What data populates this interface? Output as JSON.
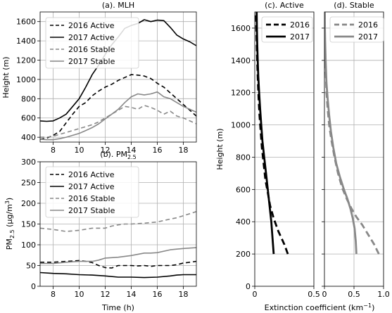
{
  "chart_data": [
    {
      "id": "a",
      "type": "line",
      "title": "(a). MLH",
      "xlabel": "",
      "ylabel": "Height (m)",
      "xlim": [
        7,
        19
      ],
      "ylim": [
        350,
        1700
      ],
      "xticks": [
        8,
        10,
        12,
        14,
        16,
        18
      ],
      "yticks": [
        400,
        600,
        800,
        1000,
        1200,
        1400,
        1600
      ],
      "grid": true,
      "legend": "top-left",
      "series": [
        {
          "name": "2016 Active",
          "color": "#000000",
          "dash": "dashed",
          "x": [
            7,
            7.5,
            8,
            8.5,
            9,
            9.5,
            10,
            10.5,
            11,
            11.5,
            12,
            12.5,
            13,
            13.5,
            14,
            14.5,
            15,
            15.5,
            16,
            16.5,
            17,
            17.5,
            18,
            18.5,
            19
          ],
          "y": [
            380,
            390,
            420,
            460,
            550,
            640,
            720,
            760,
            830,
            880,
            920,
            950,
            990,
            1020,
            1050,
            1045,
            1035,
            1010,
            960,
            920,
            860,
            800,
            740,
            680,
            620
          ]
        },
        {
          "name": "2017 Active",
          "color": "#000000",
          "dash": "solid",
          "x": [
            7,
            7.5,
            8,
            8.5,
            9,
            9.5,
            10,
            10.5,
            11,
            11.5,
            12,
            12.5,
            13,
            13.5,
            14,
            14.5,
            15,
            15.5,
            16,
            16.5,
            17,
            17.5,
            18,
            18.5,
            19
          ],
          "y": [
            570,
            565,
            570,
            600,
            640,
            720,
            800,
            920,
            1050,
            1150,
            1260,
            1360,
            1440,
            1530,
            1560,
            1580,
            1620,
            1600,
            1615,
            1610,
            1540,
            1460,
            1420,
            1390,
            1350
          ]
        },
        {
          "name": "2016 Stable",
          "color": "#888888",
          "dash": "dashed",
          "x": [
            7,
            7.5,
            8,
            8.5,
            9,
            9.5,
            10,
            10.5,
            11,
            11.5,
            12,
            12.5,
            13,
            13.5,
            14,
            14.5,
            15,
            15.5,
            16,
            16.5,
            17,
            17.5,
            18,
            18.5,
            19
          ],
          "y": [
            400,
            400,
            410,
            430,
            450,
            470,
            490,
            510,
            530,
            560,
            600,
            640,
            680,
            720,
            710,
            690,
            730,
            710,
            680,
            640,
            670,
            620,
            600,
            570,
            540
          ]
        },
        {
          "name": "2017 Stable",
          "color": "#888888",
          "dash": "solid",
          "x": [
            7,
            7.5,
            8,
            8.5,
            9,
            9.5,
            10,
            10.5,
            11,
            11.5,
            12,
            12.5,
            13,
            13.5,
            14,
            14.5,
            15,
            15.5,
            16,
            16.5,
            17,
            17.5,
            18,
            18.5,
            19
          ],
          "y": [
            380,
            375,
            375,
            385,
            400,
            420,
            440,
            470,
            500,
            540,
            590,
            640,
            690,
            760,
            820,
            850,
            840,
            850,
            870,
            820,
            800,
            760,
            720,
            690,
            660
          ]
        }
      ]
    },
    {
      "id": "b",
      "type": "line",
      "title": "(b). PM",
      "title_sub": "2.5",
      "xlabel": "Time (h)",
      "ylabel": "PM",
      "ylabel_sub": "2.5",
      "ylabel_unit": " (μg/m",
      "ylabel_sup": "3",
      "ylabel_end": ")",
      "xlim": [
        7,
        19
      ],
      "ylim": [
        0,
        300
      ],
      "xticks": [
        8,
        10,
        12,
        14,
        16,
        18
      ],
      "yticks": [
        0,
        50,
        100,
        150,
        200,
        250,
        300
      ],
      "grid": true,
      "legend": "top-left",
      "series": [
        {
          "name": "2016 Active",
          "color": "#000000",
          "dash": "dashed",
          "x": [
            7,
            8,
            9,
            10,
            10.5,
            11,
            11.5,
            12,
            12.5,
            13,
            13.5,
            14,
            14.5,
            15,
            15.5,
            16,
            17,
            17.5,
            18,
            18.5,
            19
          ],
          "y": [
            58,
            58,
            60,
            62,
            60,
            57,
            50,
            45,
            44,
            50,
            50,
            50,
            49,
            50,
            48,
            50,
            50,
            52,
            56,
            58,
            60
          ]
        },
        {
          "name": "2017 Active",
          "color": "#000000",
          "dash": "solid",
          "x": [
            7,
            8,
            9,
            10,
            11,
            12,
            13,
            14,
            15,
            16,
            17,
            17.5,
            18,
            19
          ],
          "y": [
            33,
            31,
            30,
            28,
            27,
            25,
            22,
            22,
            21,
            22,
            25,
            27,
            28,
            28
          ]
        },
        {
          "name": "2016 Stable",
          "color": "#888888",
          "dash": "dashed",
          "x": [
            7,
            8,
            9,
            10,
            11,
            12,
            12.5,
            13,
            13.5,
            14,
            15,
            16,
            17,
            17.5,
            18,
            18.5,
            19
          ],
          "y": [
            140,
            137,
            132,
            135,
            140,
            140,
            145,
            148,
            150,
            150,
            152,
            155,
            162,
            165,
            170,
            175,
            180
          ]
        },
        {
          "name": "2017 Stable",
          "color": "#888888",
          "dash": "solid",
          "x": [
            7,
            8,
            9,
            10,
            11,
            11.5,
            12,
            13,
            14,
            15,
            15.5,
            16,
            17,
            18,
            19
          ],
          "y": [
            55,
            55,
            58,
            60,
            60,
            63,
            68,
            70,
            74,
            80,
            80,
            81,
            88,
            91,
            93
          ]
        }
      ]
    },
    {
      "id": "c",
      "type": "line",
      "title": "(c). Active",
      "xlabel": "",
      "ylabel": "Height (m)",
      "xlim": [
        0,
        0.5
      ],
      "ylim": [
        0,
        1700
      ],
      "xticks": [
        0,
        0.5
      ],
      "xtick_labels": [
        "0",
        "0.5"
      ],
      "yticks": [
        0,
        200,
        400,
        600,
        800,
        1000,
        1200,
        1400,
        1600
      ],
      "grid": true,
      "legend": "top-right",
      "series": [
        {
          "name": "2016",
          "color": "#000000",
          "dash": "dashed",
          "x": [
            0.28,
            0.25,
            0.2,
            0.16,
            0.13,
            0.11,
            0.09,
            0.075,
            0.06,
            0.05,
            0.04,
            0.033,
            0.027,
            0.022,
            0.018,
            0.015,
            0.012,
            0.01
          ],
          "y": [
            200,
            260,
            340,
            420,
            500,
            580,
            660,
            760,
            860,
            960,
            1060,
            1160,
            1260,
            1360,
            1460,
            1560,
            1640,
            1700
          ]
        },
        {
          "name": "2017",
          "color": "#000000",
          "dash": "solid",
          "x": [
            0.16,
            0.15,
            0.14,
            0.125,
            0.11,
            0.095,
            0.08,
            0.065,
            0.055,
            0.045,
            0.037,
            0.03,
            0.025,
            0.021,
            0.018,
            0.016
          ],
          "y": [
            200,
            300,
            400,
            500,
            600,
            700,
            800,
            900,
            1000,
            1100,
            1200,
            1300,
            1400,
            1500,
            1600,
            1700
          ]
        }
      ]
    },
    {
      "id": "d",
      "type": "line",
      "title": "(d). Stable",
      "xlabel": "",
      "ylabel": "",
      "xlim": [
        0,
        1.0
      ],
      "ylim": [
        0,
        1700
      ],
      "xticks": [
        0,
        0.5,
        1.0
      ],
      "xtick_labels": [
        "0",
        "0.5",
        "1.0"
      ],
      "grid": true,
      "legend": "top-right",
      "series": [
        {
          "name": "2016",
          "color": "#888888",
          "dash": "dashed",
          "x": [
            0.92,
            0.84,
            0.74,
            0.64,
            0.54,
            0.46,
            0.38,
            0.3,
            0.23,
            0.17,
            0.12,
            0.08,
            0.055,
            0.035,
            0.02,
            0.01,
            0.005
          ],
          "y": [
            200,
            260,
            320,
            380,
            430,
            480,
            540,
            610,
            700,
            800,
            900,
            1000,
            1100,
            1200,
            1350,
            1500,
            1700
          ]
        },
        {
          "name": "2017",
          "color": "#888888",
          "dash": "solid",
          "x": [
            0.54,
            0.53,
            0.51,
            0.48,
            0.44,
            0.39,
            0.33,
            0.26,
            0.2,
            0.15,
            0.11,
            0.08,
            0.055,
            0.035,
            0.02,
            0.01,
            0.005
          ],
          "y": [
            200,
            280,
            360,
            420,
            480,
            540,
            600,
            680,
            760,
            860,
            960,
            1060,
            1160,
            1260,
            1400,
            1550,
            1700
          ]
        }
      ]
    }
  ],
  "shared_xlabel_right": {
    "text": "Extinction coefficient (km",
    "sup": "−1",
    "end": ")"
  }
}
